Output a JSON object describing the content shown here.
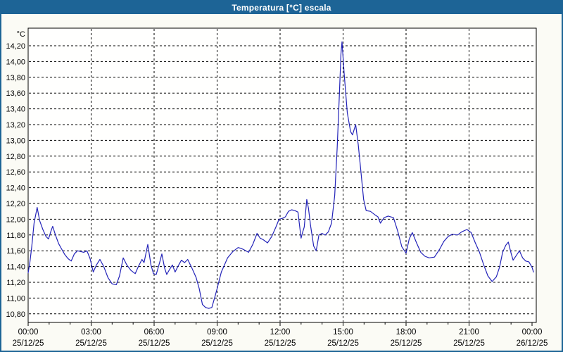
{
  "window": {
    "title": "Temperatura [°C] escala"
  },
  "colors": {
    "titlebar": "#1d6496",
    "window_border": "#1d6496",
    "page_background": "#fbfbf5",
    "plot_background": "#fffffe",
    "grid": "#000000",
    "line": "#2323b8",
    "label_text": "#000000",
    "title_text": "#ffffff"
  },
  "chart_data": {
    "type": "line",
    "title": "Temperatura [°C] escala",
    "y_unit_label": "°C",
    "ylabel": "Temperatura [°C]",
    "xlabel": "",
    "ylim": [
      10.8,
      14.2
    ],
    "y_step": 0.2,
    "grid": true,
    "legend": "none",
    "y_ticks": [
      {
        "value": 14.2,
        "label": "14,20"
      },
      {
        "value": 14.0,
        "label": "14,00"
      },
      {
        "value": 13.8,
        "label": "13,80"
      },
      {
        "value": 13.6,
        "label": "13,60"
      },
      {
        "value": 13.4,
        "label": "13,40"
      },
      {
        "value": 13.2,
        "label": "13,20"
      },
      {
        "value": 13.0,
        "label": "13,00"
      },
      {
        "value": 12.8,
        "label": "12,80"
      },
      {
        "value": 12.6,
        "label": "12,60"
      },
      {
        "value": 12.4,
        "label": "12,40"
      },
      {
        "value": 12.2,
        "label": "12,20"
      },
      {
        "value": 12.0,
        "label": "12,00"
      },
      {
        "value": 11.8,
        "label": "11,80"
      },
      {
        "value": 11.6,
        "label": "11,60"
      },
      {
        "value": 11.4,
        "label": "11,40"
      },
      {
        "value": 11.2,
        "label": "11,20"
      },
      {
        "value": 11.0,
        "label": "11,00"
      },
      {
        "value": 10.8,
        "label": "10,80"
      }
    ],
    "x_ticks": [
      {
        "hour": 0,
        "time": "00:00",
        "date": "25/12/25"
      },
      {
        "hour": 3,
        "time": "03:00",
        "date": "25/12/25"
      },
      {
        "hour": 6,
        "time": "06:00",
        "date": "25/12/25"
      },
      {
        "hour": 9,
        "time": "09:00",
        "date": "25/12/25"
      },
      {
        "hour": 12,
        "time": "12:00",
        "date": "25/12/25"
      },
      {
        "hour": 15,
        "time": "15:00",
        "date": "25/12/25"
      },
      {
        "hour": 18,
        "time": "18:00",
        "date": "25/12/25"
      },
      {
        "hour": 21,
        "time": "21:00",
        "date": "25/12/25"
      },
      {
        "hour": 24,
        "time": "00:00",
        "date": "26/12/25"
      }
    ],
    "x_minor_tick_every_hours": 1,
    "series": [
      {
        "name": "Temperatura",
        "color": "#2323b8",
        "points": [
          [
            0.0,
            11.32
          ],
          [
            0.08,
            11.45
          ],
          [
            0.17,
            11.65
          ],
          [
            0.28,
            11.95
          ],
          [
            0.43,
            12.15
          ],
          [
            0.55,
            11.98
          ],
          [
            0.7,
            11.87
          ],
          [
            0.85,
            11.78
          ],
          [
            0.97,
            11.75
          ],
          [
            1.1,
            11.86
          ],
          [
            1.17,
            11.91
          ],
          [
            1.3,
            11.8
          ],
          [
            1.45,
            11.69
          ],
          [
            1.6,
            11.62
          ],
          [
            1.75,
            11.55
          ],
          [
            1.9,
            11.5
          ],
          [
            2.05,
            11.47
          ],
          [
            2.2,
            11.56
          ],
          [
            2.35,
            11.6
          ],
          [
            2.5,
            11.59
          ],
          [
            2.65,
            11.58
          ],
          [
            2.8,
            11.6
          ],
          [
            2.95,
            11.5
          ],
          [
            3.1,
            11.33
          ],
          [
            3.25,
            11.42
          ],
          [
            3.42,
            11.49
          ],
          [
            3.6,
            11.4
          ],
          [
            3.8,
            11.26
          ],
          [
            4.0,
            11.18
          ],
          [
            4.2,
            11.17
          ],
          [
            4.35,
            11.28
          ],
          [
            4.53,
            11.51
          ],
          [
            4.7,
            11.42
          ],
          [
            4.9,
            11.35
          ],
          [
            5.1,
            11.31
          ],
          [
            5.25,
            11.4
          ],
          [
            5.42,
            11.49
          ],
          [
            5.52,
            11.45
          ],
          [
            5.7,
            11.68
          ],
          [
            5.85,
            11.42
          ],
          [
            5.97,
            11.31
          ],
          [
            6.1,
            11.3
          ],
          [
            6.25,
            11.44
          ],
          [
            6.37,
            11.56
          ],
          [
            6.5,
            11.38
          ],
          [
            6.6,
            11.3
          ],
          [
            6.75,
            11.37
          ],
          [
            6.87,
            11.42
          ],
          [
            7.0,
            11.33
          ],
          [
            7.15,
            11.41
          ],
          [
            7.3,
            11.48
          ],
          [
            7.45,
            11.45
          ],
          [
            7.6,
            11.49
          ],
          [
            7.8,
            11.38
          ],
          [
            8.0,
            11.26
          ],
          [
            8.15,
            11.12
          ],
          [
            8.3,
            10.92
          ],
          [
            8.45,
            10.88
          ],
          [
            8.6,
            10.87
          ],
          [
            8.75,
            10.88
          ],
          [
            8.9,
            11.02
          ],
          [
            9.0,
            11.12
          ],
          [
            9.2,
            11.33
          ],
          [
            9.5,
            11.51
          ],
          [
            9.75,
            11.59
          ],
          [
            10.0,
            11.64
          ],
          [
            10.15,
            11.63
          ],
          [
            10.3,
            11.61
          ],
          [
            10.5,
            11.58
          ],
          [
            10.7,
            11.68
          ],
          [
            10.9,
            11.82
          ],
          [
            11.05,
            11.76
          ],
          [
            11.2,
            11.74
          ],
          [
            11.4,
            11.7
          ],
          [
            11.6,
            11.78
          ],
          [
            11.8,
            11.9
          ],
          [
            11.95,
            12.0
          ],
          [
            12.1,
            12.01
          ],
          [
            12.25,
            12.03
          ],
          [
            12.4,
            12.1
          ],
          [
            12.55,
            12.12
          ],
          [
            12.7,
            12.11
          ],
          [
            12.85,
            12.09
          ],
          [
            13.0,
            11.76
          ],
          [
            13.08,
            11.84
          ],
          [
            13.15,
            11.9
          ],
          [
            13.27,
            12.25
          ],
          [
            13.35,
            12.14
          ],
          [
            13.45,
            11.92
          ],
          [
            13.6,
            11.66
          ],
          [
            13.72,
            11.6
          ],
          [
            13.85,
            11.8
          ],
          [
            14.0,
            11.82
          ],
          [
            14.15,
            11.8
          ],
          [
            14.3,
            11.84
          ],
          [
            14.45,
            11.95
          ],
          [
            14.6,
            12.3
          ],
          [
            14.72,
            12.9
          ],
          [
            14.82,
            13.55
          ],
          [
            14.9,
            14.1
          ],
          [
            14.95,
            14.25
          ],
          [
            15.05,
            13.85
          ],
          [
            15.2,
            13.35
          ],
          [
            15.36,
            13.11
          ],
          [
            15.45,
            13.07
          ],
          [
            15.6,
            13.2
          ],
          [
            15.72,
            12.95
          ],
          [
            15.85,
            12.6
          ],
          [
            15.98,
            12.25
          ],
          [
            16.1,
            12.11
          ],
          [
            16.3,
            12.1
          ],
          [
            16.5,
            12.06
          ],
          [
            16.66,
            12.03
          ],
          [
            16.78,
            11.95
          ],
          [
            16.95,
            12.02
          ],
          [
            17.15,
            12.04
          ],
          [
            17.4,
            12.02
          ],
          [
            17.6,
            11.85
          ],
          [
            17.8,
            11.65
          ],
          [
            18.0,
            11.57
          ],
          [
            18.15,
            11.75
          ],
          [
            18.3,
            11.83
          ],
          [
            18.5,
            11.7
          ],
          [
            18.7,
            11.58
          ],
          [
            18.9,
            11.53
          ],
          [
            19.1,
            11.51
          ],
          [
            19.35,
            11.52
          ],
          [
            19.6,
            11.62
          ],
          [
            19.8,
            11.72
          ],
          [
            20.0,
            11.78
          ],
          [
            20.2,
            11.81
          ],
          [
            20.45,
            11.8
          ],
          [
            20.65,
            11.84
          ],
          [
            20.9,
            11.87
          ],
          [
            21.1,
            11.83
          ],
          [
            21.3,
            11.7
          ],
          [
            21.5,
            11.58
          ],
          [
            21.7,
            11.42
          ],
          [
            21.9,
            11.28
          ],
          [
            22.1,
            11.21
          ],
          [
            22.3,
            11.27
          ],
          [
            22.45,
            11.39
          ],
          [
            22.6,
            11.58
          ],
          [
            22.75,
            11.67
          ],
          [
            22.87,
            11.71
          ],
          [
            23.0,
            11.57
          ],
          [
            23.1,
            11.48
          ],
          [
            23.25,
            11.54
          ],
          [
            23.4,
            11.6
          ],
          [
            23.55,
            11.51
          ],
          [
            23.7,
            11.47
          ],
          [
            23.85,
            11.46
          ],
          [
            24.0,
            11.39
          ],
          [
            24.07,
            11.33
          ]
        ]
      }
    ]
  }
}
